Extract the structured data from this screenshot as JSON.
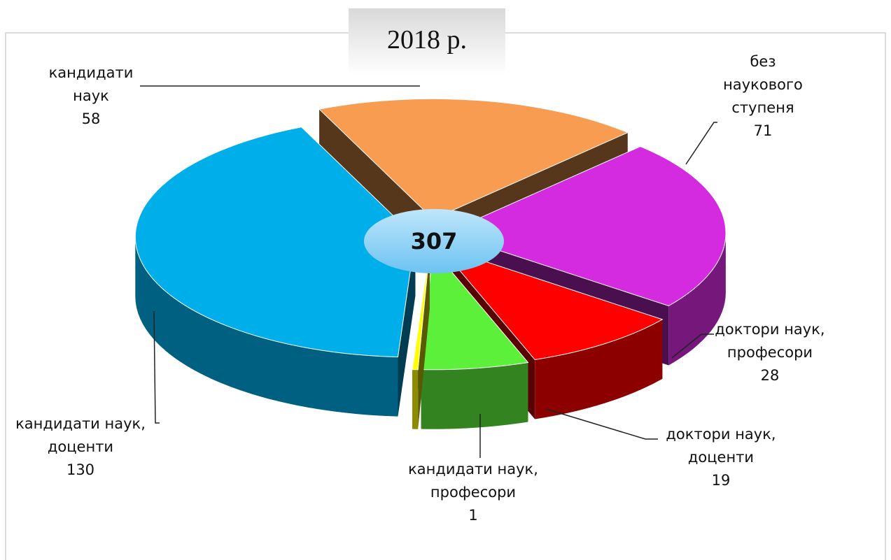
{
  "chart_data": {
    "type": "pie3d",
    "title": "2018 р.",
    "center_label": 307,
    "categories": [
      "кандидати наук",
      "без наукового ступеня",
      "доктори наук, професори",
      "доктори наук, доценти",
      "кандидати наук, професори",
      "кандидати наук, доценти"
    ],
    "values": [
      58,
      71,
      28,
      19,
      1,
      130
    ],
    "colors": [
      "#f79c50",
      "#d42ae0",
      "#ff0000",
      "#5cf03a",
      "#ffff00",
      "#00aeea"
    ]
  }
}
